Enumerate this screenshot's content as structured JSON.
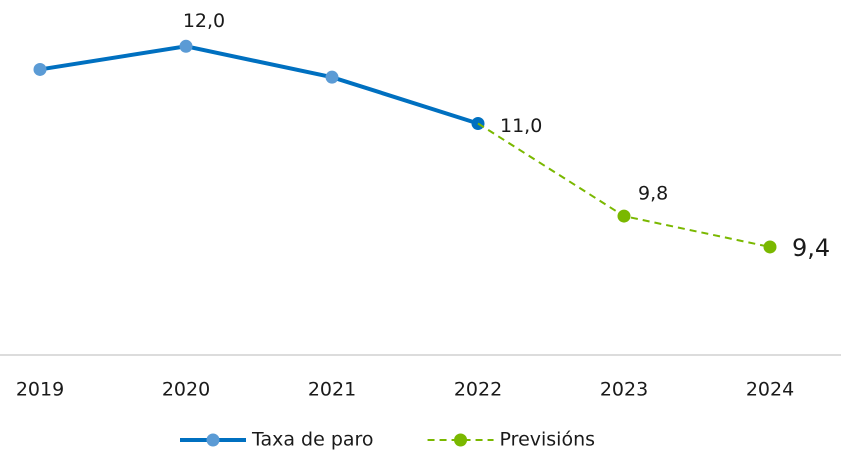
{
  "chart_data": {
    "type": "line",
    "categories": [
      "2019",
      "2020",
      "2021",
      "2022",
      "2023",
      "2024"
    ],
    "series": [
      {
        "name": "Taxa de paro",
        "color": "#0070c0",
        "marker_color": "#5b9bd5",
        "dash": false,
        "values": [
          11.7,
          12.0,
          11.6,
          11.0,
          null,
          null
        ],
        "value_labels": [
          null,
          "12,0",
          null,
          "11,0",
          null,
          null
        ]
      },
      {
        "name": "Previsións",
        "color": "#7ab800",
        "marker_color": "#7ab800",
        "dash": true,
        "values": [
          null,
          null,
          null,
          11.0,
          9.8,
          9.4
        ],
        "value_labels": [
          null,
          null,
          null,
          null,
          "9,8",
          "9,4"
        ]
      }
    ],
    "ylim": [
      8,
      12.6
    ],
    "legend": "bottom"
  }
}
